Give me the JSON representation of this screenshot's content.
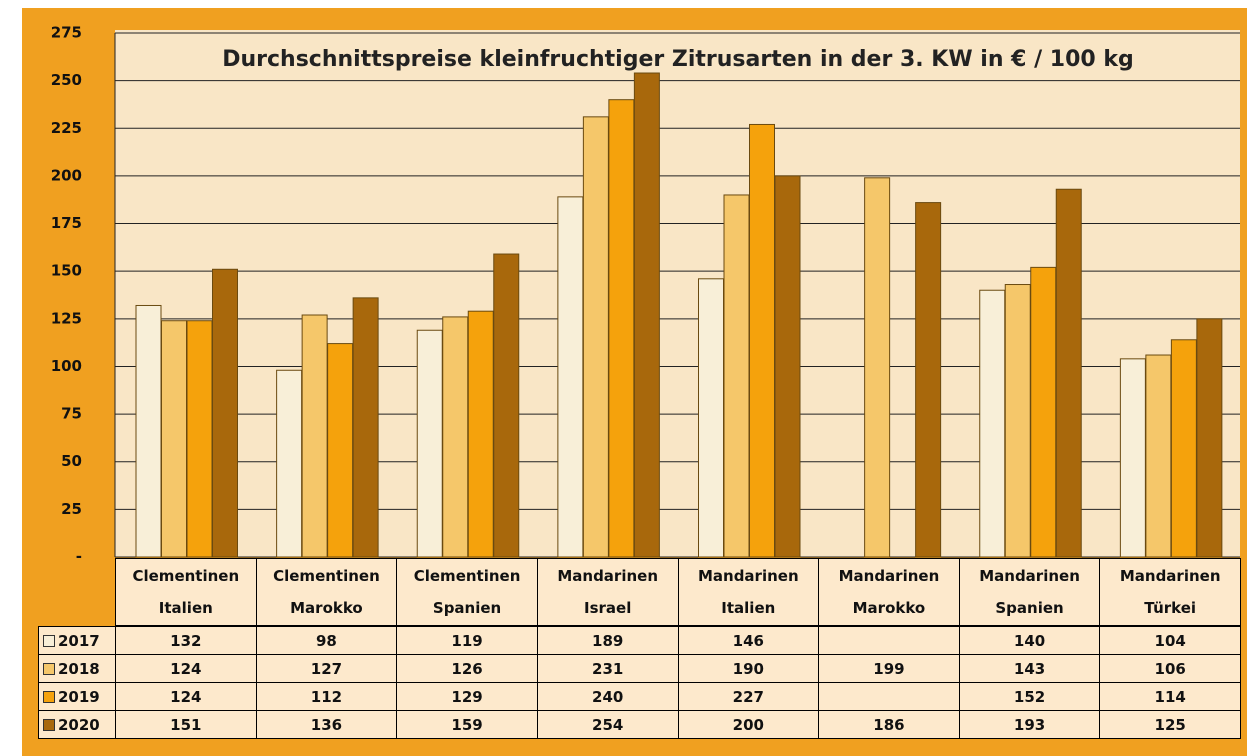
{
  "chart_data": {
    "type": "bar",
    "title": "Durchschnittspreise kleinfruchtiger Zitrusarten in der 3. KW in € / 100 kg",
    "categories": [
      "Clementinen\nItalien",
      "Clementinen\nMarokko",
      "Clementinen\nSpanien",
      "Mandarinen\nIsrael",
      "Mandarinen\nItalien",
      "Mandarinen\nMarokko",
      "Mandarinen\nSpanien",
      "Mandarinen\nTürkei"
    ],
    "series": [
      {
        "name": "2017",
        "color": "#f8efd8",
        "values": [
          132,
          98,
          119,
          189,
          146,
          null,
          140,
          104
        ]
      },
      {
        "name": "2018",
        "color": "#f5c76a",
        "values": [
          124,
          127,
          126,
          231,
          190,
          199,
          143,
          106
        ]
      },
      {
        "name": "2019",
        "color": "#f5a20c",
        "values": [
          124,
          112,
          129,
          240,
          227,
          null,
          152,
          114
        ]
      },
      {
        "name": "2020",
        "color": "#a8680c",
        "values": [
          151,
          136,
          159,
          254,
          200,
          186,
          193,
          125
        ]
      }
    ],
    "ylim": [
      0,
      275
    ],
    "yticks": [
      {
        "value": 0,
        "label": "-"
      },
      25,
      50,
      75,
      100,
      125,
      150,
      175,
      200,
      225,
      250,
      275
    ],
    "grid": true
  }
}
